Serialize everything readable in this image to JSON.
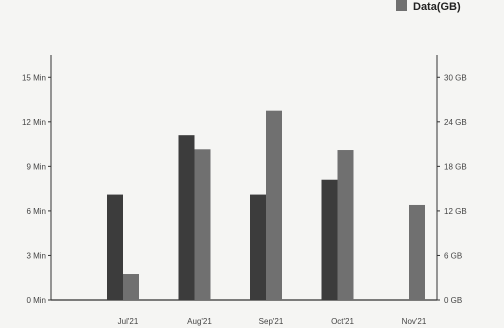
{
  "chart_data": {
    "type": "bar",
    "title": "",
    "xlabel": "",
    "ylabel": "",
    "categories": [
      "Jul'21",
      "Aug'21",
      "Sep'21",
      "Oct'21",
      "Nov'21"
    ],
    "y_left": {
      "ticks": [
        0,
        3,
        6,
        9,
        12,
        15
      ],
      "tick_labels": [
        "0 Min",
        "3 Min",
        "6 Min",
        "9 Min",
        "12 Min",
        "15 Min"
      ],
      "ylim": [
        0,
        16.5
      ]
    },
    "y_right": {
      "ticks": [
        0,
        6,
        12,
        18,
        24,
        30
      ],
      "tick_labels": [
        "0 GB",
        "6 GB",
        "12 GB",
        "18 GB",
        "24 GB",
        "30 GB"
      ],
      "ylim": [
        0,
        33
      ]
    },
    "series": [
      {
        "axis": "left",
        "values": [
          7.1,
          11.1,
          7.1,
          8.1,
          0
        ],
        "color": "#3c3c3c"
      },
      {
        "name": "Data(GB)",
        "axis": "right",
        "values": [
          3.5,
          20.3,
          25.5,
          20.2,
          12.8
        ],
        "color": "#707070"
      }
    ],
    "legend": {
      "placement": "top-right"
    },
    "grid": false
  }
}
